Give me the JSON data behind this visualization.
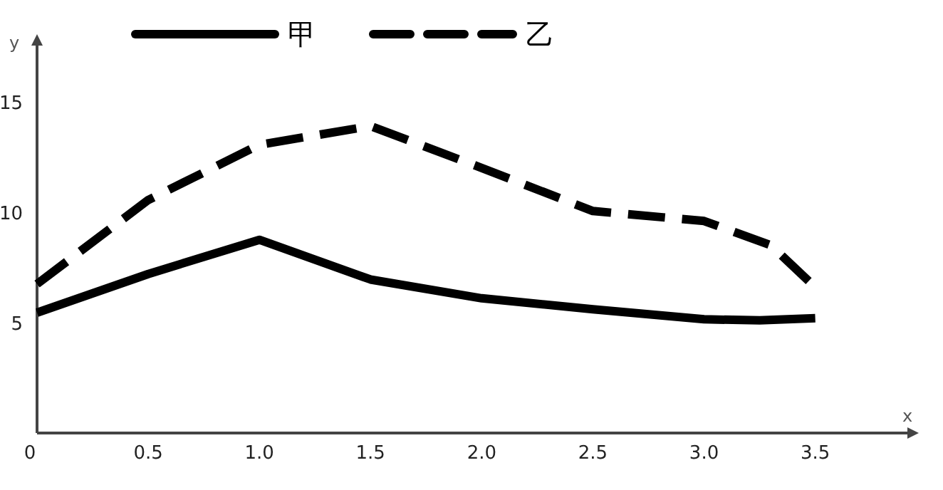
{
  "chart_data": {
    "type": "line",
    "xlabel": "x",
    "ylabel": "y",
    "xlim": [
      0,
      3.94
    ],
    "ylim": [
      0,
      17.8
    ],
    "xticks": [
      0,
      0.5,
      {
        "value": 1,
        "label": "1.0"
      },
      1.5,
      {
        "value": 2,
        "label": "2.0"
      },
      2.5,
      {
        "value": 3,
        "label": "3.0"
      },
      3.5
    ],
    "yticks": [
      5,
      10,
      15
    ],
    "grid": false,
    "legend": "top",
    "marker": "none",
    "x": [
      0,
      0.5,
      1,
      1.5,
      2,
      2.5,
      3,
      3.25,
      3.5
    ],
    "series": [
      {
        "name": "甲",
        "color": "#000000",
        "line_style": "solid",
        "values": [
          5.45,
          7.2,
          8.75,
          6.95,
          6.1,
          5.6,
          5.15,
          5.1,
          5.2
        ]
      },
      {
        "name": "乙",
        "color": "#000000",
        "line_style": "dashed",
        "x": [
          0,
          0.5,
          1,
          1.5,
          2,
          2.5,
          3,
          3.3,
          3.5
        ],
        "values": [
          6.75,
          10.55,
          13.05,
          13.9,
          12.0,
          10.05,
          9.6,
          8.5,
          6.6
        ]
      }
    ]
  }
}
